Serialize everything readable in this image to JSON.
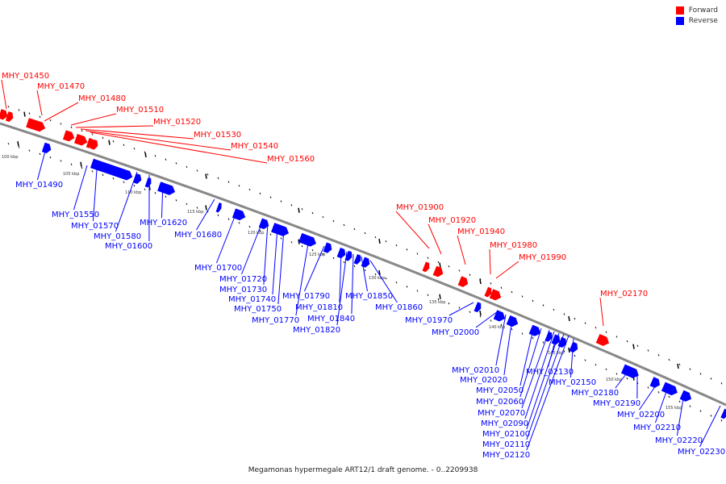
{
  "legend": {
    "items": [
      {
        "label": "Forward",
        "color": "#ff0000"
      },
      {
        "label": "Reverse",
        "color": "#0000ff"
      }
    ]
  },
  "caption": "Megamonas hypermegale ART12/1 draft genome. - 0..2209938",
  "colors": {
    "forward": "#ff0000",
    "reverse": "#0000ff",
    "backbone": "#888888"
  },
  "ticks": [
    "100 kbp",
    "105 kbp",
    "110 kbp",
    "115 kbp",
    "120 kbp",
    "125 kbp",
    "130 kbp",
    "135 kbp",
    "140 kbp",
    "145 kbp",
    "150 kbp",
    "155 kbp"
  ],
  "forward_genes": [
    "MHY_01450",
    "MHY_01470",
    "MHY_01480",
    "MHY_01510",
    "MHY_01520",
    "MHY_01530",
    "MHY_01540",
    "MHY_01560",
    "MHY_01900",
    "MHY_01920",
    "MHY_01940",
    "MHY_01980",
    "MHY_01990",
    "MHY_02170"
  ],
  "reverse_genes": [
    "MHY_01490",
    "MHY_01550",
    "MHY_01570",
    "MHY_01580",
    "MHY_01600",
    "MHY_01620",
    "MHY_01680",
    "MHY_01700",
    "MHY_01720",
    "MHY_01730",
    "MHY_01740",
    "MHY_01750",
    "MHY_01770",
    "MHY_01790",
    "MHY_01810",
    "MHY_01820",
    "MHY_01840",
    "MHY_01850",
    "MHY_01860",
    "MHY_01970",
    "MHY_02000",
    "MHY_02010",
    "MHY_02020",
    "MHY_02050",
    "MHY_02060",
    "MHY_02070",
    "MHY_02090",
    "MHY_02100",
    "MHY_02110",
    "MHY_02120",
    "MHY_02130",
    "MHY_02150",
    "MHY_02180",
    "MHY_02190",
    "MHY_02200",
    "MHY_02210",
    "MHY_02220",
    "MHY_02230"
  ]
}
